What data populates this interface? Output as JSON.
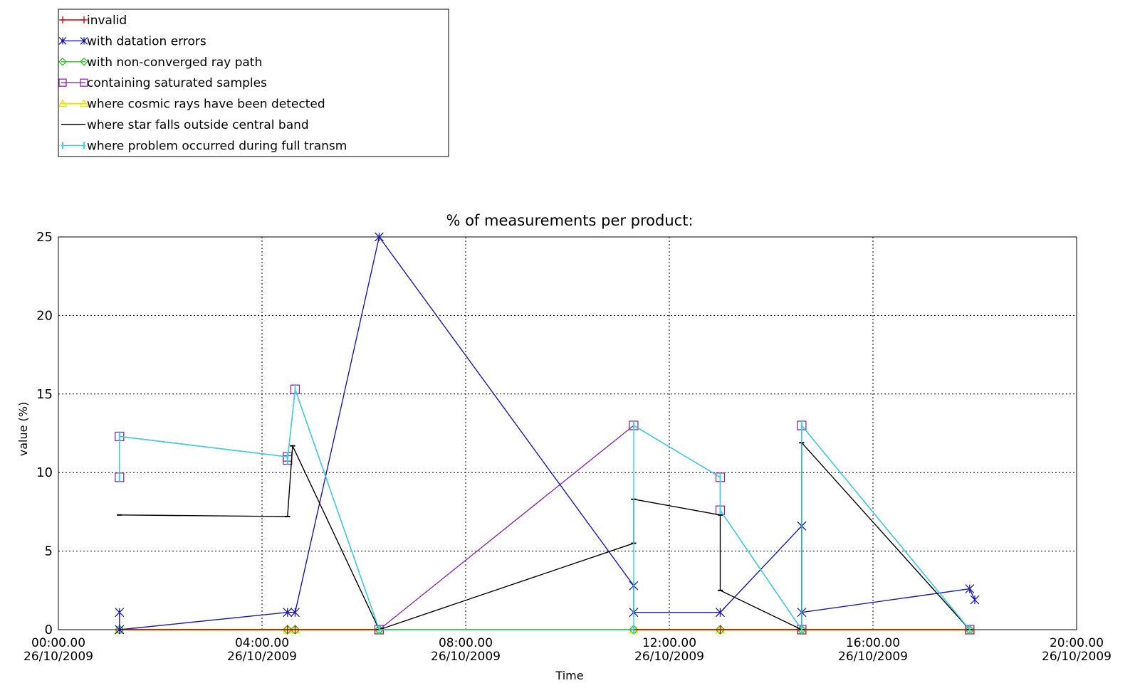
{
  "chart_data": {
    "type": "line",
    "title": "% of measurements per product:",
    "xlabel": "Time",
    "ylabel": "value (%)",
    "x_unit": "hours on 26/10/2009",
    "xlim": [
      0,
      20
    ],
    "ylim": [
      0,
      25
    ],
    "grid": true,
    "legend_position": "top-left (outside plot)",
    "x_ticks": [
      {
        "x": 0,
        "time": "00:00.00",
        "date": "26/10/2009"
      },
      {
        "x": 4,
        "time": "04:00.00",
        "date": "26/10/2009"
      },
      {
        "x": 8,
        "time": "08:00.00",
        "date": "26/10/2009"
      },
      {
        "x": 12,
        "time": "12:00.00",
        "date": "26/10/2009"
      },
      {
        "x": 16,
        "time": "16:00.00",
        "date": "26/10/2009"
      },
      {
        "x": 20,
        "time": "20:00.00",
        "date": "26/10/2009"
      }
    ],
    "y_ticks": [
      0,
      5,
      10,
      15,
      20,
      25
    ],
    "series": [
      {
        "name": "invalid",
        "color": "#cc0000",
        "marker": "plus",
        "points": [
          [
            1.2,
            0
          ],
          [
            4.5,
            0
          ],
          [
            4.65,
            0
          ],
          [
            6.3,
            0
          ],
          [
            11.3,
            0
          ],
          [
            13.0,
            0
          ],
          [
            14.6,
            0
          ],
          [
            17.9,
            0
          ]
        ]
      },
      {
        "name": "with datation errors",
        "color": "#1a1aaa",
        "marker": "asterisk",
        "points": [
          [
            1.2,
            1.1
          ],
          [
            1.2,
            0
          ],
          [
            4.5,
            1.1
          ],
          [
            4.65,
            1.1
          ],
          [
            6.3,
            25
          ],
          [
            11.3,
            2.8
          ],
          [
            11.3,
            1.1
          ],
          [
            13.0,
            1.1
          ],
          [
            14.6,
            6.6
          ],
          [
            14.6,
            1.1
          ],
          [
            17.9,
            2.6
          ],
          [
            18.0,
            1.9
          ]
        ]
      },
      {
        "name": "with non-converged ray path",
        "color": "#33bb33",
        "marker": "diamond",
        "points": [
          [
            1.2,
            0
          ],
          [
            4.5,
            0
          ],
          [
            4.65,
            0
          ],
          [
            6.3,
            0
          ],
          [
            11.3,
            0
          ],
          [
            13.0,
            0
          ],
          [
            14.6,
            0
          ],
          [
            17.9,
            0
          ]
        ]
      },
      {
        "name": "containing saturated samples",
        "color": "#8a2ba8",
        "marker": "square",
        "points": [
          [
            1.2,
            9.7
          ],
          [
            1.2,
            12.3
          ],
          [
            4.5,
            11.0
          ],
          [
            4.5,
            10.8
          ],
          [
            4.65,
            15.3
          ],
          [
            6.3,
            0
          ],
          [
            11.3,
            13.0
          ],
          [
            13.0,
            9.7
          ],
          [
            13.0,
            7.6
          ],
          [
            14.6,
            0
          ],
          [
            14.6,
            13.0
          ],
          [
            17.9,
            0
          ]
        ]
      },
      {
        "name": "where cosmic rays have been detected",
        "color": "#e6e600",
        "marker": "triangle",
        "points": [
          [
            1.2,
            0
          ],
          [
            4.5,
            0
          ],
          [
            4.65,
            0
          ],
          [
            6.3,
            0
          ],
          [
            11.3,
            0
          ],
          [
            13.0,
            0
          ],
          [
            14.6,
            0
          ],
          [
            17.9,
            0
          ]
        ]
      },
      {
        "name": "where star falls outside central band",
        "color": "#000000",
        "marker": "dash",
        "points": [
          [
            1.2,
            7.3
          ],
          [
            4.5,
            7.2
          ],
          [
            4.5,
            7.2
          ],
          [
            4.6,
            11.7
          ],
          [
            6.3,
            0
          ],
          [
            11.3,
            5.5
          ],
          [
            11.3,
            8.3
          ],
          [
            13.0,
            7.3
          ],
          [
            13.0,
            2.5
          ],
          [
            14.6,
            0
          ],
          [
            14.6,
            11.9
          ],
          [
            17.9,
            0
          ]
        ]
      },
      {
        "name": "where problem occurred during full transm",
        "color": "#33d6e6",
        "marker": "bar",
        "points": [
          [
            1.2,
            9.7
          ],
          [
            1.2,
            12.3
          ],
          [
            4.5,
            11.0
          ],
          [
            4.5,
            10.8
          ],
          [
            4.65,
            15.3
          ],
          [
            6.3,
            0
          ],
          [
            11.3,
            0
          ],
          [
            11.3,
            13.0
          ],
          [
            13.0,
            9.7
          ],
          [
            13.0,
            7.6
          ],
          [
            14.6,
            0
          ],
          [
            14.6,
            13.0
          ],
          [
            17.9,
            0
          ]
        ]
      }
    ]
  }
}
